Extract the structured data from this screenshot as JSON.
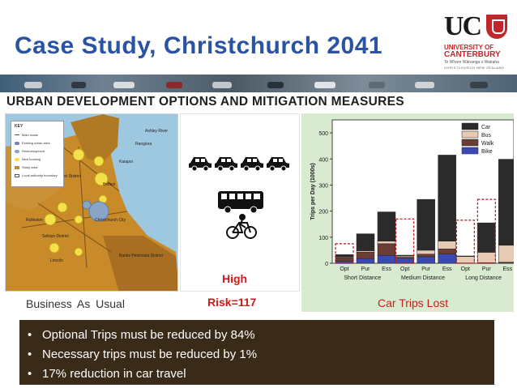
{
  "header": {
    "title": "Case Study, Christchurch 2041",
    "subtitle": "URBAN DEVELOPMENT OPTIONS AND MITIGATION MEASURES"
  },
  "logo": {
    "mark": "UC",
    "line1": "UNIVERSITY OF",
    "line2": "CANTERBURY",
    "maori": "Te Whare Wānanga o Waitaha",
    "tagline": "CHRISTCHURCH NEW ZEALAND"
  },
  "map": {
    "legend_title": "KEY",
    "legend_items": [
      "Main roads",
      "Existing urban area",
      "Redevelopment",
      "New housing",
      "Study area",
      "Local authority boundary"
    ],
    "labels": [
      "Ashley River",
      "Rangiora",
      "Kaiapoi",
      "Waimakariri District",
      "Belfast",
      "Christchurch City",
      "Rolleston",
      "Lincoln",
      "Selwyn District",
      "Banks Peninsula District"
    ]
  },
  "panels": {
    "bau_caption": "Business As Usual",
    "high": "High",
    "risk": "Risk=117",
    "chart_caption": "Car Trips Lost"
  },
  "colors": {
    "title": "#2a53a3",
    "red": "#d11a1a",
    "bullet_bg": "#3a2a18",
    "chart_bg": "#d8ead0",
    "car": "#2b2b2b",
    "bus": "#e8c9b4",
    "walk": "#6b3d35",
    "bike": "#3b49b5"
  },
  "chart_data": {
    "type": "bar",
    "stacked": true,
    "ylabel": "Trips per Day (1000s)",
    "ylim": [
      0,
      550
    ],
    "yticks": [
      0,
      100,
      200,
      300,
      400,
      500
    ],
    "legend_position": "top-right",
    "groups": [
      "Short Distance",
      "Medium Distance",
      "Long Distance"
    ],
    "categories": [
      "Opt",
      "Pur",
      "Ess"
    ],
    "series": [
      {
        "name": "Car",
        "color": "#2b2b2b",
        "values": [
          [
            8,
            65,
            112
          ],
          [
            3,
            195,
            330
          ],
          [
            2,
            113,
            330
          ]
        ]
      },
      {
        "name": "Bus",
        "color": "#e8c9b4",
        "values": [
          [
            3,
            5,
            10
          ],
          [
            5,
            15,
            30
          ],
          [
            25,
            40,
            65
          ]
        ]
      },
      {
        "name": "Walk",
        "color": "#6b3d35",
        "values": [
          [
            15,
            25,
            45
          ],
          [
            3,
            10,
            20
          ],
          [
            1,
            2,
            3
          ]
        ]
      },
      {
        "name": "Bike",
        "color": "#3b49b5",
        "values": [
          [
            7,
            18,
            30
          ],
          [
            20,
            25,
            35
          ],
          [
            0,
            0,
            1
          ]
        ]
      }
    ],
    "lost_trips": [
      [
        75,
        null,
        null
      ],
      [
        170,
        null,
        null
      ],
      [
        165,
        245,
        null
      ]
    ]
  },
  "bullets": [
    "Optional Trips must be reduced by 84%",
    "Necessary trips must be reduced by 1%",
    "17% reduction in car travel"
  ]
}
